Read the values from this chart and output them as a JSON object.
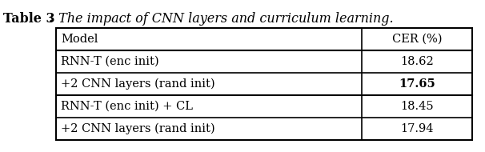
{
  "title_bold": "Table 3",
  "title_period": ".",
  "title_italic": " The impact of CNN layers and curriculum learning.",
  "col_headers": [
    "Model",
    "CER (%)"
  ],
  "rows": [
    [
      "RNN-T (enc init)",
      "18.62"
    ],
    [
      "+2 CNN layers (rand init)",
      "17.65"
    ],
    [
      "RNN-T (enc init) + CL",
      "18.45"
    ],
    [
      "+2 CNN layers (rand init)",
      "17.94"
    ]
  ],
  "bold_cells": [
    [
      1,
      1
    ]
  ],
  "group_separators": [
    2
  ],
  "font_size": 10.5,
  "title_font_size": 11.5
}
